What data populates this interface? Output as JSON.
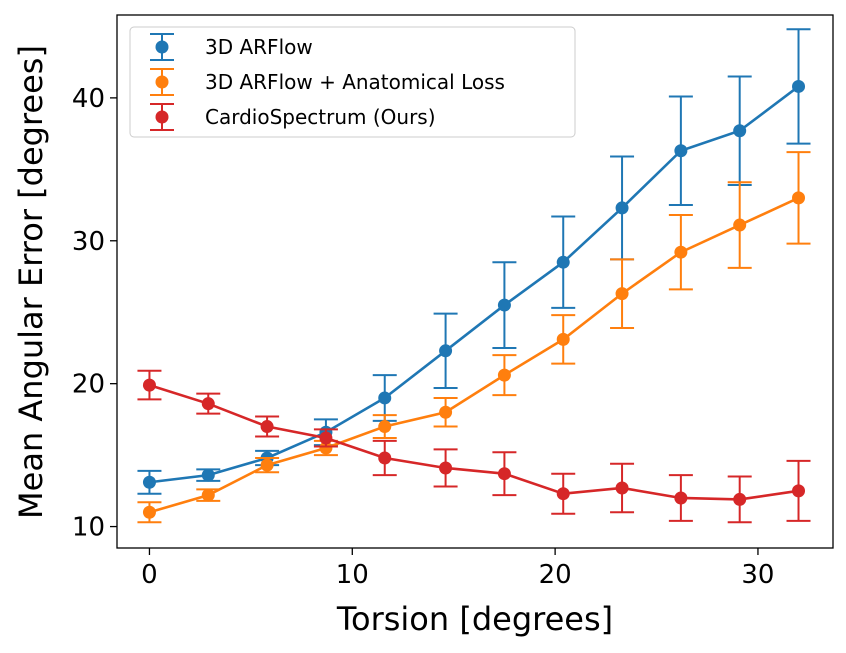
{
  "chart_data": {
    "type": "line",
    "title": "",
    "xlabel": "Torsion [degrees]",
    "ylabel": "Mean Angular Error [degrees]",
    "xlim": [
      -1.6,
      33.7
    ],
    "ylim": [
      8.5,
      45.8
    ],
    "xticks": [
      0,
      10,
      20,
      30
    ],
    "yticks": [
      10,
      20,
      30,
      40
    ],
    "legend_position": "top-left",
    "x": [
      0,
      2.9,
      5.8,
      8.7,
      11.6,
      14.6,
      17.5,
      20.4,
      23.3,
      26.2,
      29.1,
      32.0
    ],
    "series": [
      {
        "name": "3D ARFlow",
        "color": "#1f77b4",
        "values": [
          13.1,
          13.6,
          14.8,
          16.6,
          19.0,
          22.3,
          25.5,
          28.5,
          32.3,
          36.3,
          37.7,
          40.8
        ],
        "errors": [
          0.8,
          0.4,
          0.5,
          0.9,
          1.6,
          2.6,
          3.0,
          3.2,
          3.6,
          3.8,
          3.8,
          4.0
        ]
      },
      {
        "name": "3D ARFlow + Anatomical Loss",
        "color": "#ff7f0e",
        "values": [
          11.0,
          12.2,
          14.3,
          15.5,
          17.0,
          18.0,
          20.6,
          23.1,
          26.3,
          29.2,
          31.1,
          33.0
        ],
        "errors": [
          0.7,
          0.4,
          0.5,
          0.5,
          0.8,
          1.0,
          1.4,
          1.7,
          2.4,
          2.6,
          3.0,
          3.2
        ]
      },
      {
        "name": "CardioSpectrum (Ours)",
        "color": "#d62728",
        "values": [
          19.9,
          18.6,
          17.0,
          16.2,
          14.8,
          14.1,
          13.7,
          12.3,
          12.7,
          12.0,
          11.9,
          12.5
        ],
        "errors": [
          1.0,
          0.7,
          0.7,
          0.6,
          1.2,
          1.3,
          1.5,
          1.4,
          1.7,
          1.6,
          1.6,
          2.1
        ]
      }
    ]
  }
}
